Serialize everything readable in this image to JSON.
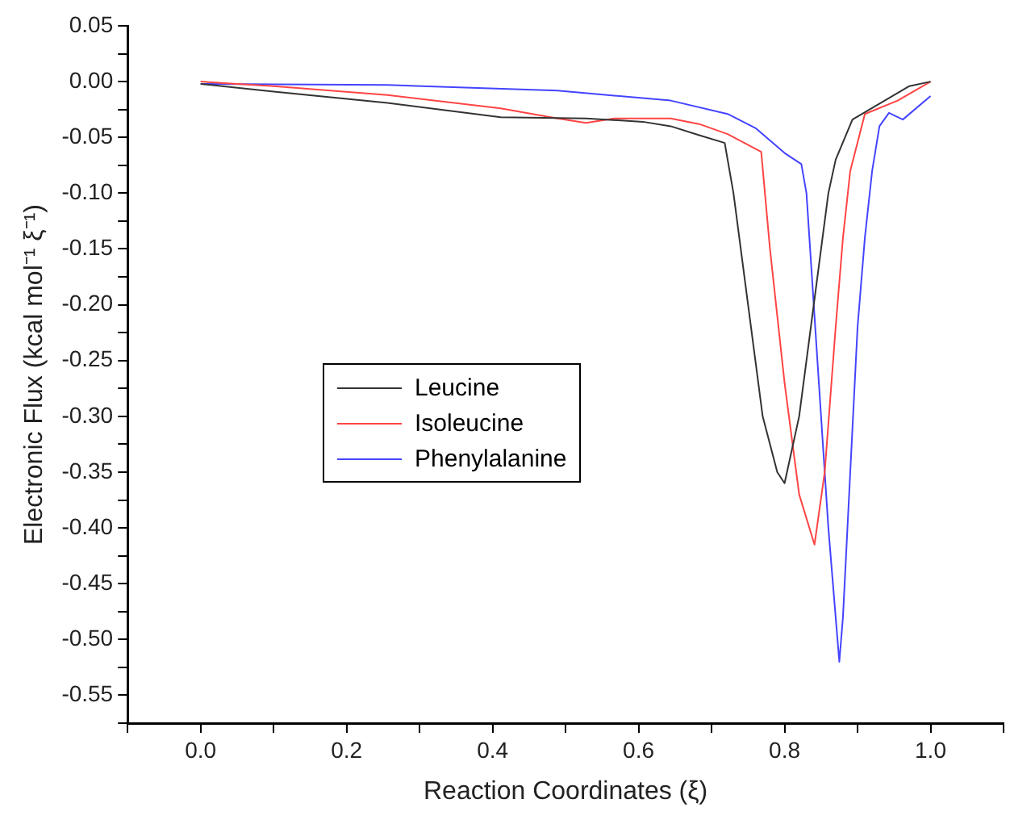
{
  "chart_data": {
    "type": "line",
    "xlabel": "Reaction Coordinates (ξ)",
    "ylabel": "Electronic Flux (kcal mol⁻¹ ξ⁻¹)",
    "xlim": [
      -0.1,
      1.1
    ],
    "ylim": [
      -0.575,
      0.05
    ],
    "xticks": [
      {
        "value": -0.1,
        "label": null
      },
      {
        "value": 0,
        "label": "0.0"
      },
      {
        "value": 0.1,
        "label": null
      },
      {
        "value": 0.2,
        "label": "0.2"
      },
      {
        "value": 0.3,
        "label": null
      },
      {
        "value": 0.4,
        "label": "0.4"
      },
      {
        "value": 0.5,
        "label": null
      },
      {
        "value": 0.6,
        "label": "0.6"
      },
      {
        "value": 0.7,
        "label": null
      },
      {
        "value": 0.8,
        "label": "0.8"
      },
      {
        "value": 0.9,
        "label": null
      },
      {
        "value": 1.0,
        "label": "1.0"
      },
      {
        "value": 1.1,
        "label": null
      }
    ],
    "yticks": [
      {
        "value": 0.05,
        "label": "0.05"
      },
      {
        "value": 0.025,
        "label": null
      },
      {
        "value": 0,
        "label": "0.00"
      },
      {
        "value": -0.025,
        "label": null
      },
      {
        "value": -0.05,
        "label": "-0.05"
      },
      {
        "value": -0.075,
        "label": null
      },
      {
        "value": -0.1,
        "label": "-0.10"
      },
      {
        "value": -0.125,
        "label": null
      },
      {
        "value": -0.15,
        "label": "-0.15"
      },
      {
        "value": -0.175,
        "label": null
      },
      {
        "value": -0.2,
        "label": "-0.20"
      },
      {
        "value": -0.225,
        "label": null
      },
      {
        "value": -0.25,
        "label": "-0.25"
      },
      {
        "value": -0.275,
        "label": null
      },
      {
        "value": -0.3,
        "label": "-0.30"
      },
      {
        "value": -0.325,
        "label": null
      },
      {
        "value": -0.35,
        "label": "-0.35"
      },
      {
        "value": -0.375,
        "label": null
      },
      {
        "value": -0.4,
        "label": "-0.40"
      },
      {
        "value": -0.425,
        "label": null
      },
      {
        "value": -0.45,
        "label": "-0.45"
      },
      {
        "value": -0.475,
        "label": null
      },
      {
        "value": -0.5,
        "label": "-0.50"
      },
      {
        "value": -0.525,
        "label": null
      },
      {
        "value": -0.55,
        "label": "-0.55"
      },
      {
        "value": -0.575,
        "label": null
      }
    ],
    "grid": false,
    "legend": "center",
    "marker": "none",
    "line_style": "solid",
    "series": [
      {
        "name": "Leucine",
        "color": "#333333",
        "x": [
          0,
          0.1,
          0.256,
          0.411,
          0.528,
          0.606,
          0.644,
          0.683,
          0.718,
          0.73,
          0.75,
          0.77,
          0.79,
          0.8,
          0.82,
          0.84,
          0.86,
          0.87,
          0.893,
          0.971,
          1.0
        ],
        "values": [
          -0.002,
          -0.009,
          -0.019,
          -0.032,
          -0.033,
          -0.036,
          -0.04,
          -0.048,
          -0.055,
          -0.1,
          -0.2,
          -0.3,
          -0.35,
          -0.36,
          -0.3,
          -0.2,
          -0.1,
          -0.07,
          -0.034,
          -0.004,
          0
        ]
      },
      {
        "name": "Isoleucine",
        "color": "#ff4444",
        "x": [
          0,
          0.1,
          0.256,
          0.411,
          0.489,
          0.528,
          0.567,
          0.644,
          0.683,
          0.722,
          0.768,
          0.78,
          0.8,
          0.82,
          0.841,
          0.855,
          0.87,
          0.88,
          0.89,
          0.91,
          0.955,
          1.0
        ],
        "values": [
          0,
          -0.004,
          -0.012,
          -0.024,
          -0.033,
          -0.037,
          -0.033,
          -0.033,
          -0.038,
          -0.047,
          -0.063,
          -0.15,
          -0.27,
          -0.37,
          -0.415,
          -0.35,
          -0.22,
          -0.14,
          -0.08,
          -0.029,
          -0.017,
          0
        ]
      },
      {
        "name": "Phenylalanine",
        "color": "#4444ff",
        "x": [
          0,
          0.256,
          0.489,
          0.644,
          0.722,
          0.761,
          0.8,
          0.823,
          0.83,
          0.845,
          0.86,
          0.875,
          0.88,
          0.89,
          0.9,
          0.91,
          0.92,
          0.93,
          0.943,
          0.962,
          1.0
        ],
        "values": [
          -0.002,
          -0.003,
          -0.008,
          -0.017,
          -0.029,
          -0.042,
          -0.064,
          -0.074,
          -0.1,
          -0.25,
          -0.4,
          -0.52,
          -0.48,
          -0.35,
          -0.22,
          -0.14,
          -0.08,
          -0.04,
          -0.028,
          -0.034,
          -0.013
        ]
      }
    ]
  }
}
